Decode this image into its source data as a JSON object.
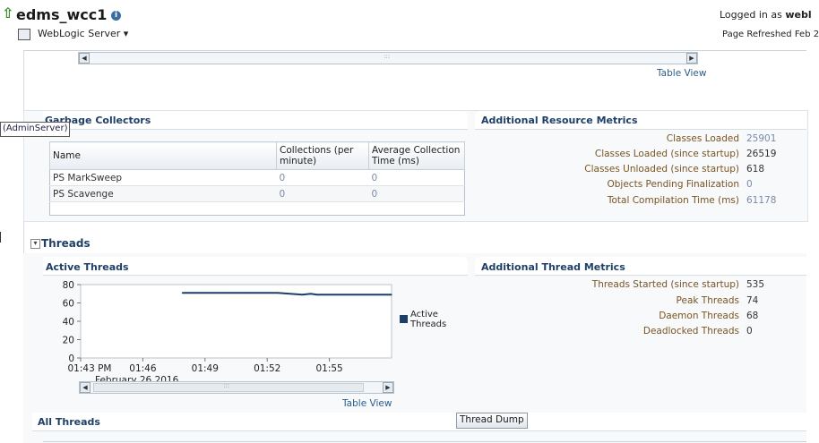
{
  "header": {
    "title": "edms_wcc1",
    "server_menu": "WebLogic Server ▾",
    "logged_in_prefix": "Logged in as ",
    "logged_in_user": "webl",
    "page_refreshed": "Page Refreshed Feb 2"
  },
  "top_table_view": "Table View",
  "tooltip": "(AdminServer)",
  "garbage_collectors": {
    "title": "Garbage Collectors",
    "columns": [
      "Name",
      "Collections (per minute)",
      "Average Collection Time (ms)"
    ],
    "rows": [
      {
        "name": "PS MarkSweep",
        "collections": "0",
        "avg_time": "0"
      },
      {
        "name": "PS Scavenge",
        "collections": "0",
        "avg_time": "0"
      }
    ]
  },
  "resource_metrics": {
    "title": "Additional Resource Metrics",
    "items": [
      {
        "label": "Classes Loaded",
        "value": "25901",
        "link": true
      },
      {
        "label": "Classes Loaded (since startup)",
        "value": "26519",
        "link": false
      },
      {
        "label": "Classes Unloaded (since startup)",
        "value": "618",
        "link": false
      },
      {
        "label": "Objects Pending Finalization",
        "value": "0",
        "link": true
      },
      {
        "label": "Total Compilation Time (ms)",
        "value": "61178",
        "link": true
      }
    ]
  },
  "threads_section": {
    "title": "Threads",
    "active_threads_title": "Active Threads",
    "additional_title": "Additional Thread Metrics",
    "metrics": [
      {
        "label": "Threads Started (since startup)",
        "value": "535"
      },
      {
        "label": "Peak Threads",
        "value": "74"
      },
      {
        "label": "Daemon Threads",
        "value": "68"
      },
      {
        "label": "Deadlocked Threads",
        "value": "0"
      }
    ],
    "table_view": "Table View",
    "all_threads": "All Threads",
    "thread_dump_button": "Thread Dump"
  },
  "chart_data": {
    "type": "line",
    "title": "",
    "x_ticks": [
      "01:43 PM",
      "01:46",
      "01:49",
      "01:52",
      "01:55"
    ],
    "date_label": "February 26 2016",
    "y_ticks": [
      "0",
      "20",
      "40",
      "60",
      "80"
    ],
    "ylim": [
      0,
      80
    ],
    "xlim": [
      0,
      15
    ],
    "series": [
      {
        "name": "Active Threads",
        "color": "#1b3f66",
        "x": [
          4.9,
          6,
          7,
          8,
          9.5,
          10.7,
          11.1,
          11.4,
          12,
          13,
          14,
          15
        ],
        "y": [
          71,
          71,
          71,
          71,
          71,
          69,
          70,
          69,
          69,
          69,
          69,
          69
        ]
      }
    ]
  }
}
